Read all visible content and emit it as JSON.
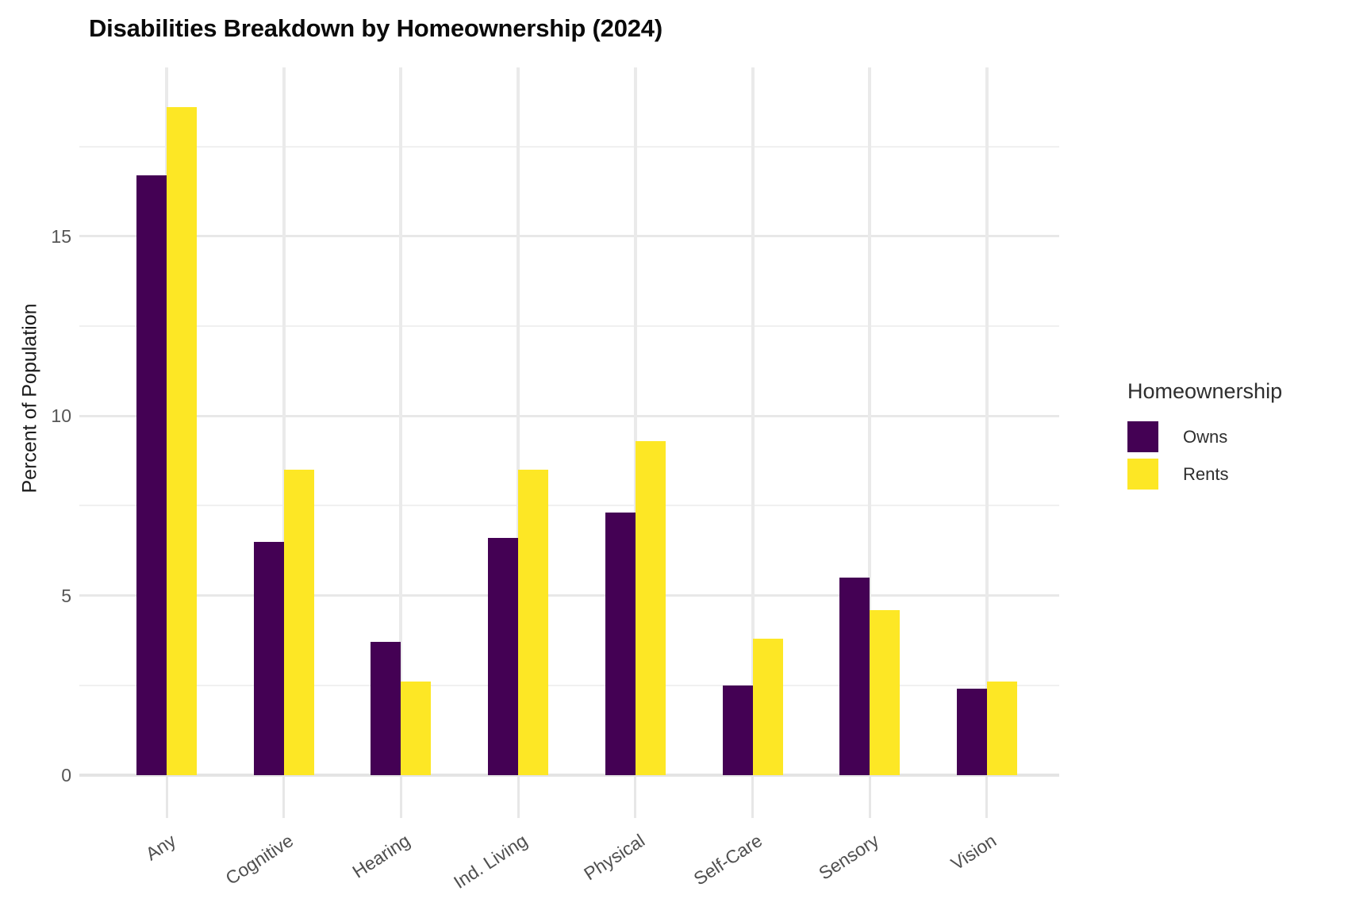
{
  "chart_data": {
    "type": "bar",
    "title": "Disabilities Breakdown by Homeownership (2024)",
    "xlabel": "",
    "ylabel": "Percent of Population",
    "legend_title": "Homeownership",
    "legend_position": "right",
    "grid": "on",
    "categories": [
      "Any",
      "Cognitive",
      "Hearing",
      "Ind. Living",
      "Physical",
      "Self-Care",
      "Sensory",
      "Vision"
    ],
    "series": [
      {
        "name": "Owns",
        "color": "#440154",
        "values": [
          16.7,
          6.5,
          3.7,
          6.6,
          7.3,
          2.5,
          5.5,
          2.4
        ]
      },
      {
        "name": "Rents",
        "color": "#FDE725",
        "values": [
          18.6,
          8.5,
          2.6,
          8.5,
          9.3,
          3.8,
          4.6,
          2.6
        ]
      }
    ],
    "ylim": [
      0,
      19.7
    ],
    "yticks": [
      0,
      5,
      10,
      15
    ],
    "minor_gridlines": [
      2.5,
      7.5,
      12.5,
      17.5
    ],
    "background_color": "#ffffff",
    "gridline_color": "#e8e8e8"
  }
}
